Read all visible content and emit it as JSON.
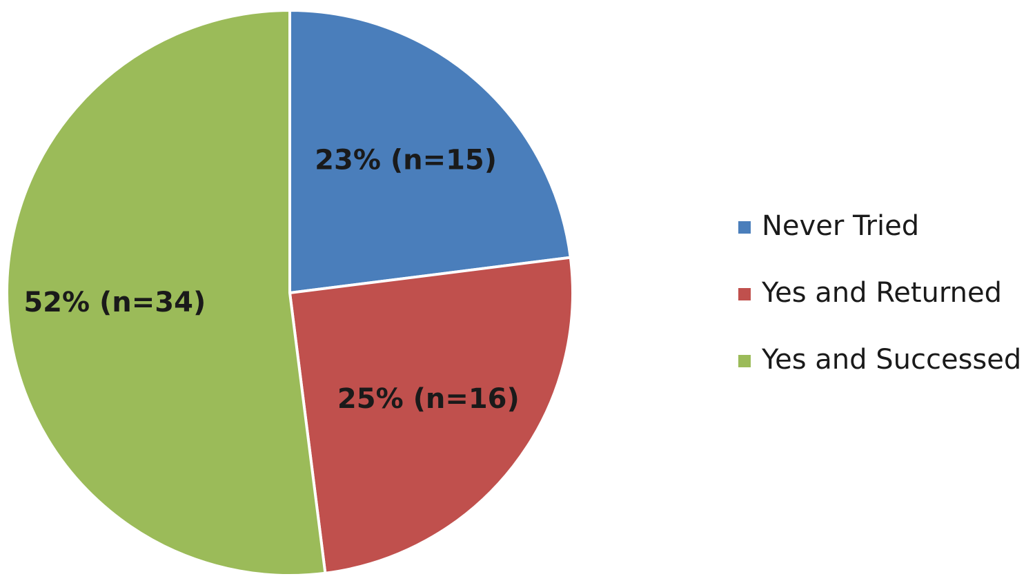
{
  "chart_data": {
    "type": "pie",
    "categories": [
      "Never Tried",
      "Yes and Returned",
      "Yes and Successed"
    ],
    "values": [
      23,
      25,
      52
    ],
    "value_labels": [
      "23% (n=15)",
      "25% (n=16)",
      "52% (n=34)"
    ],
    "colors": [
      "#4a7ebb",
      "#c0504d",
      "#9bbb59"
    ],
    "legend": "right"
  }
}
